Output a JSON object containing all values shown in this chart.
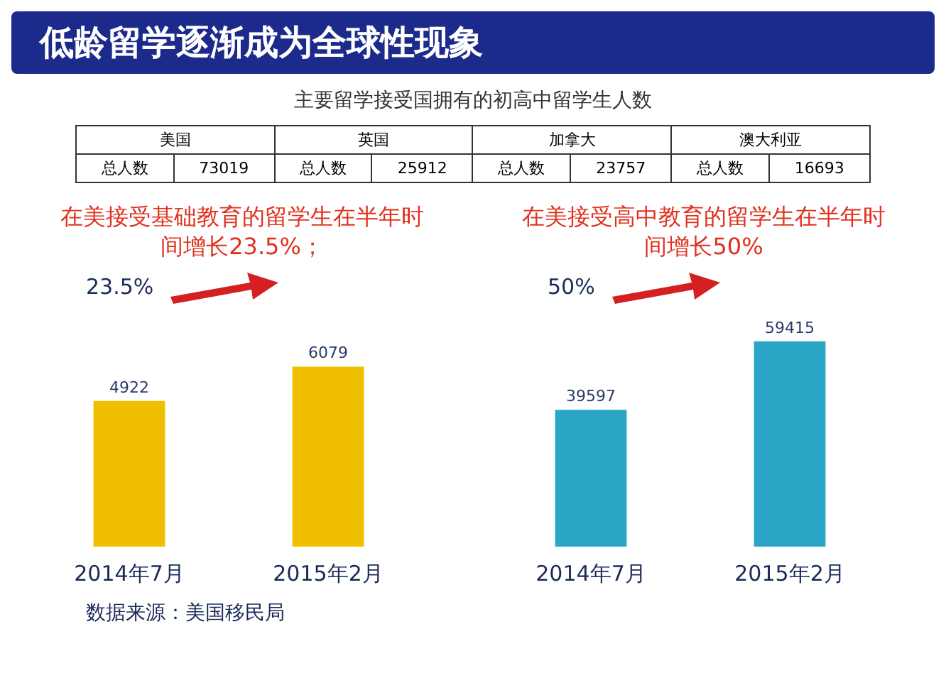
{
  "chart_data": [
    {
      "type": "other",
      "title": "低龄留学逐渐成为全球性现象",
      "subtitle": "主要留学接受国拥有的初高中留学生人数",
      "categories": [
        "美国",
        "英国",
        "加拿大",
        "澳大利亚"
      ],
      "values": [
        73019,
        25912,
        23757,
        16693
      ],
      "data_labels": true,
      "ylabel": "总人数"
    },
    {
      "type": "bar",
      "title": "在美接受基础教育的留学生在半年时间增长23.5%；",
      "categories": [
        "2014年7月",
        "2015年2月"
      ],
      "values": [
        4922,
        6079
      ],
      "color": "#f0c000",
      "data_labels": true,
      "annotations": [
        "23.5%",
        "数据来源：美国移民局"
      ]
    },
    {
      "type": "bar",
      "title": "在美接受高中教育的留学生在半年时间增长50%",
      "categories": [
        "2014年7月",
        "2015年2月"
      ],
      "values": [
        39597,
        59415
      ],
      "color": "#2aa6c6",
      "data_labels": true,
      "annotations": [
        "50%"
      ]
    }
  ]
}
